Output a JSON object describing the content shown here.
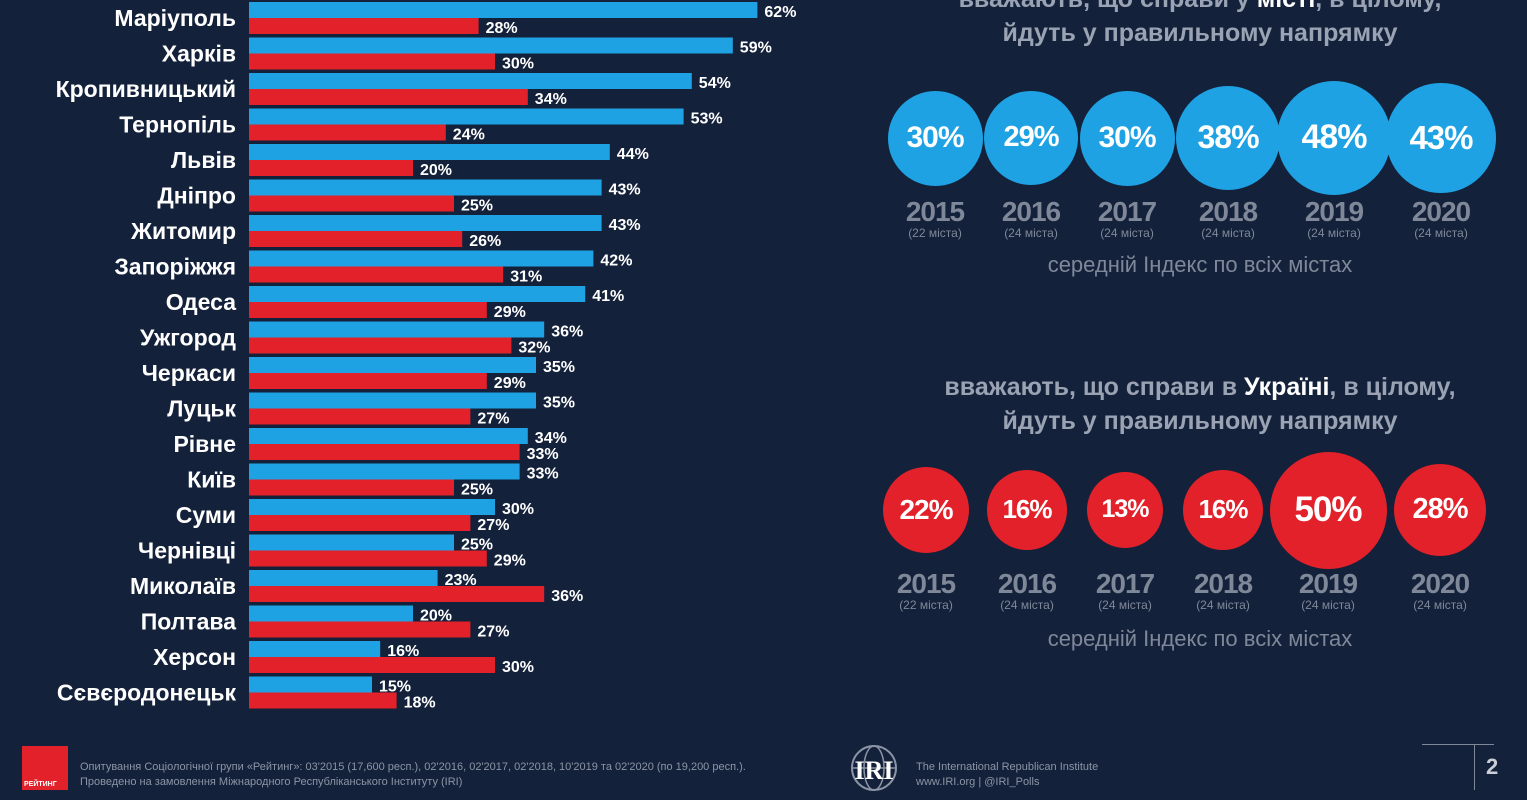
{
  "chart_data": {
    "type": "bar",
    "orientation": "horizontal",
    "categories": [
      "Маріуполь",
      "Харків",
      "Кропивницький",
      "Тернопіль",
      "Львів",
      "Дніпро",
      "Житомир",
      "Запоріжжя",
      "Одеса",
      "Ужгород",
      "Черкаси",
      "Луцьк",
      "Рівне",
      "Київ",
      "Суми",
      "Чернівці",
      "Миколаїв",
      "Полтава",
      "Херсон",
      "Сєвєродонецьк"
    ],
    "series": [
      {
        "name": "місто",
        "color": "#1fa2e3",
        "values": [
          62,
          59,
          54,
          53,
          44,
          43,
          43,
          42,
          41,
          36,
          35,
          35,
          34,
          33,
          30,
          25,
          23,
          20,
          16,
          15
        ],
        "labels": [
          "62%",
          "59%",
          "54%",
          "53%",
          "44%",
          "43%",
          "43%",
          "42%",
          "41%",
          "36%",
          "35%",
          "35%",
          "34%",
          "33%",
          "30%",
          "25%",
          "23%",
          "20%",
          "16%",
          "15%"
        ]
      },
      {
        "name": "Україна",
        "color": "#e3212a",
        "values": [
          28,
          30,
          34,
          24,
          20,
          25,
          26,
          31,
          29,
          32,
          29,
          27,
          33,
          25,
          27,
          29,
          36,
          27,
          30,
          18
        ],
        "labels": [
          "28%",
          "30%",
          "34%",
          "24%",
          "20%",
          "25%",
          "26%",
          "31%",
          "29%",
          "32%",
          "29%",
          "27%",
          "33%",
          "25%",
          "27%",
          "29%",
          "36%",
          "27%",
          "30%",
          "18%"
        ]
      }
    ],
    "xlim": [
      0,
      100
    ]
  },
  "city_panel": {
    "title_pre": "вважають, що справи у ",
    "title_bold": "місті",
    "title_post": ", в цілому,",
    "title_line2": "йдуть у правильному напрямку",
    "color": "#1fa2e3",
    "items": [
      {
        "year": "2015",
        "note": "(22 міста)",
        "value": 30,
        "label": "30%"
      },
      {
        "year": "2016",
        "note": "(24 міста)",
        "value": 29,
        "label": "29%"
      },
      {
        "year": "2017",
        "note": "(24 міста)",
        "value": 30,
        "label": "30%"
      },
      {
        "year": "2018",
        "note": "(24 міста)",
        "value": 38,
        "label": "38%"
      },
      {
        "year": "2019",
        "note": "(24 міста)",
        "value": 48,
        "label": "48%"
      },
      {
        "year": "2020",
        "note": "(24 міста)",
        "value": 43,
        "label": "43%"
      }
    ],
    "avg_text": "середній Індекс по всіх містах"
  },
  "ukraine_panel": {
    "title_pre": "вважають, що справи в ",
    "title_bold": "Україні",
    "title_post": ", в цілому,",
    "title_line2": "йдуть у правильному напрямку",
    "color": "#e3212a",
    "items": [
      {
        "year": "2015",
        "note": "(22 міста)",
        "value": 22,
        "label": "22%"
      },
      {
        "year": "2016",
        "note": "(24 міста)",
        "value": 16,
        "label": "16%"
      },
      {
        "year": "2017",
        "note": "(24 міста)",
        "value": 13,
        "label": "13%"
      },
      {
        "year": "2018",
        "note": "(24 міста)",
        "value": 16,
        "label": "16%"
      },
      {
        "year": "2019",
        "note": "(24 міста)",
        "value": 50,
        "label": "50%"
      },
      {
        "year": "2020",
        "note": "(24 міста)",
        "value": 28,
        "label": "28%"
      }
    ],
    "avg_text": "середній Індекс по всіх містах"
  },
  "footer": {
    "logo_text": "РЕЙТИНГ",
    "source_line1": "Опитування Соціологічної групи «Рейтинг»: 03'2015 (17,600 респ.), 02'2016, 02'2017, 02'2018, 10'2019 та 02'2020 (по 19,200 респ.).",
    "source_line2": "Проведено на замовлення Міжнародного Республіканського Інституту (IRI)",
    "iri_logo": "IRI",
    "iri_line1": "The International Republican Institute",
    "iri_line2": "www.IRI.org | @IRI_Polls",
    "page_number": "2"
  }
}
